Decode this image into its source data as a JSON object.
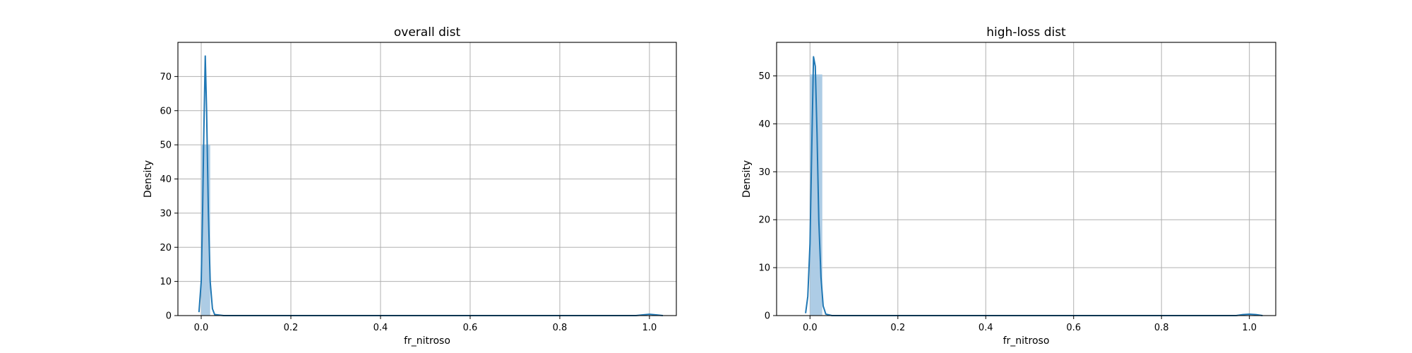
{
  "chart_data": [
    {
      "type": "histogram-kde",
      "title": "overall dist",
      "xlabel": "fr_nitroso",
      "ylabel": "Density",
      "xlim": [
        -0.052,
        1.06
      ],
      "ylim": [
        0,
        80
      ],
      "xticks": [
        0.0,
        0.2,
        0.4,
        0.6,
        0.8,
        1.0
      ],
      "yticks": [
        0,
        10,
        20,
        30,
        40,
        50,
        60,
        70
      ],
      "grid": true,
      "colors": {
        "bar": "#a9c9e4",
        "line": "#1f77b4"
      },
      "histogram": {
        "bins": [
          {
            "x0": 0.0,
            "x1": 0.02,
            "density": 50.0
          },
          {
            "x0": 0.98,
            "x1": 1.0,
            "density": 0.05
          }
        ]
      },
      "kde": {
        "x": [
          -0.005,
          0.0,
          0.003,
          0.006,
          0.009,
          0.012,
          0.016,
          0.02,
          0.025,
          0.03,
          0.05,
          0.2,
          0.5,
          0.8,
          0.97,
          0.985,
          1.0,
          1.015,
          1.03
        ],
        "y": [
          1,
          10,
          30,
          55,
          76,
          60,
          30,
          10,
          2,
          0.3,
          0,
          0,
          0,
          0,
          0,
          0.2,
          0.4,
          0.2,
          0
        ]
      }
    },
    {
      "type": "histogram-kde",
      "title": "high-loss dist",
      "xlabel": "fr_nitroso",
      "ylabel": "Density",
      "xlim": [
        -0.076,
        1.06
      ],
      "ylim": [
        0,
        57
      ],
      "xticks": [
        0.0,
        0.2,
        0.4,
        0.6,
        0.8,
        1.0
      ],
      "yticks": [
        0,
        10,
        20,
        30,
        40,
        50
      ],
      "grid": true,
      "colors": {
        "bar": "#a9c9e4",
        "line": "#1f77b4"
      },
      "histogram": {
        "bins": [
          {
            "x0": 0.0,
            "x1": 0.028,
            "density": 50.3
          },
          {
            "x0": 0.98,
            "x1": 1.0,
            "density": 0.05
          }
        ]
      },
      "kde": {
        "x": [
          -0.01,
          -0.005,
          0.0,
          0.004,
          0.008,
          0.012,
          0.016,
          0.02,
          0.025,
          0.03,
          0.036,
          0.05,
          0.2,
          0.5,
          0.8,
          0.97,
          0.985,
          1.0,
          1.015,
          1.03
        ],
        "y": [
          0.5,
          4,
          15,
          35,
          54,
          52,
          38,
          20,
          8,
          2,
          0.3,
          0,
          0,
          0,
          0,
          0,
          0.2,
          0.3,
          0.2,
          0
        ]
      }
    }
  ]
}
